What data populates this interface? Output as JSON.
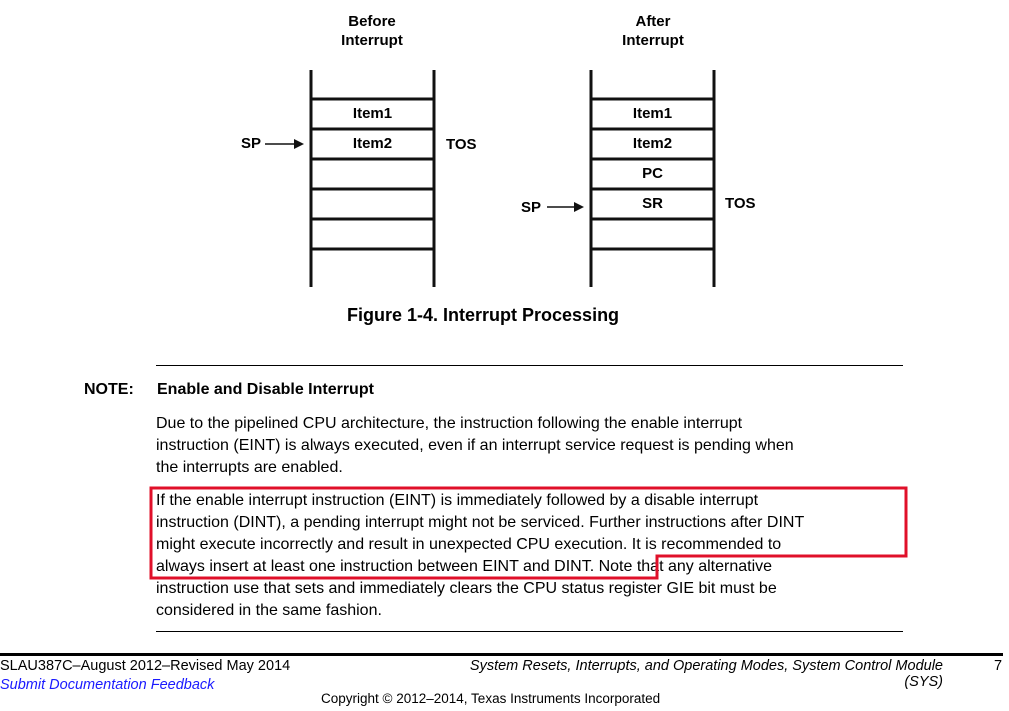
{
  "figure": {
    "before": {
      "title_line1": "Before",
      "title_line2": "Interrupt",
      "cells": [
        "Item1",
        "Item2",
        "",
        "",
        "",
        ""
      ],
      "sp": "SP",
      "tos": "TOS"
    },
    "after": {
      "title_line1": "After",
      "title_line2": "Interrupt",
      "cells": [
        "Item1",
        "Item2",
        "PC",
        "SR",
        "",
        ""
      ],
      "sp": "SP",
      "tos": "TOS"
    },
    "caption": "Figure 1-4. Interrupt Processing"
  },
  "note": {
    "label": "NOTE:",
    "title": "Enable and Disable Interrupt",
    "para1": [
      "Due to the pipelined CPU architecture, the instruction following the enable interrupt",
      "instruction (EINT) is always executed, even if an interrupt service request is pending when",
      "the interrupts are enabled."
    ],
    "para2": [
      "If the enable interrupt instruction (EINT) is immediately followed by a disable interrupt",
      "instruction (DINT), a pending interrupt might not be serviced. Further instructions after DINT",
      "might execute incorrectly and result in unexpected CPU execution. It is recommended to",
      "always insert at least one instruction between EINT and DINT.",
      "instruction use that sets and immediately clears the CPU status register GIE bit must be",
      "considered in the same fashion."
    ],
    "para2_line4_tail": " Note that any alternative",
    "highlight_color": "#e0102a"
  },
  "footer": {
    "doc_id": "SLAU387C–August 2012–Revised May 2014",
    "feedback_link": "Submit Documentation Feedback",
    "section_line1": "System Resets, Interrupts, and Operating Modes, System Control Module",
    "section_line2": "(SYS)",
    "page": "7",
    "copyright": "Copyright © 2012–2014, Texas Instruments Incorporated",
    "link_color": "#1a1aff"
  }
}
